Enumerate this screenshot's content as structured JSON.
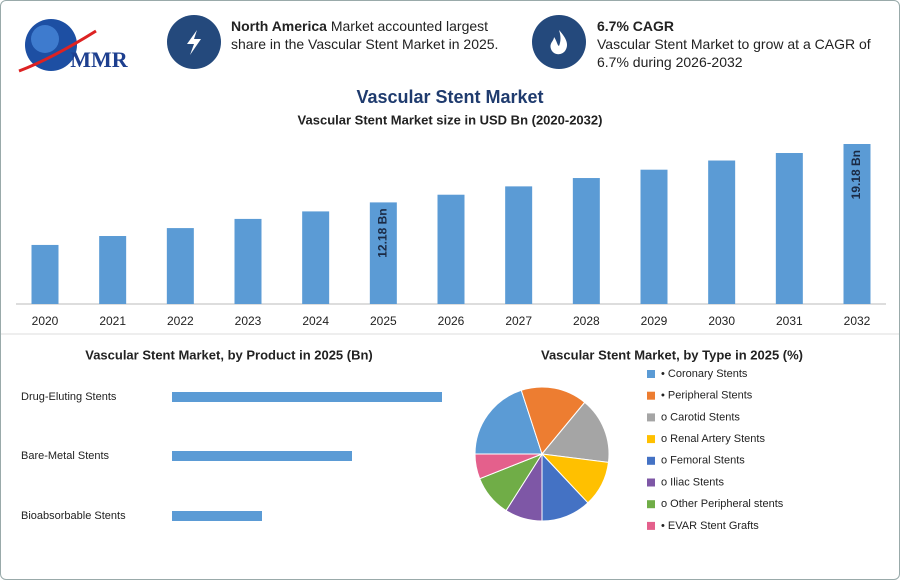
{
  "header": {
    "logo": "MMR",
    "highlights": [
      {
        "title": "North America",
        "text": "Market accounted largest share in the Vascular Stent Market in 2025."
      },
      {
        "title": "6.7% CAGR",
        "text": "Vascular Stent Market to grow at a CAGR of 6.7% during 2026-2032"
      }
    ]
  },
  "chart_data": [
    {
      "type": "bar",
      "title": "Vascular Stent Market",
      "subtitle": "Vascular Stent Market size in USD Bn (2020-2032)",
      "categories": [
        "2020",
        "2021",
        "2022",
        "2023",
        "2024",
        "2025",
        "2026",
        "2027",
        "2028",
        "2029",
        "2030",
        "2031",
        "2032"
      ],
      "values": [
        7.08,
        8.15,
        9.1,
        10.2,
        11.1,
        12.18,
        13.1,
        14.1,
        15.1,
        16.1,
        17.2,
        18.1,
        19.18
      ],
      "value_labels": [
        null,
        null,
        null,
        null,
        null,
        "12.18 Bn",
        null,
        null,
        null,
        null,
        null,
        null,
        "19.18 Bn"
      ],
      "color": "#5b9bd5"
    },
    {
      "type": "bar",
      "orientation": "horizontal",
      "title": "Vascular Stent Market, by Product in 2025 (Bn)",
      "categories": [
        "Drug-Eluting Stents",
        "Bare-Metal Stents",
        "Bioabsorbable Stents"
      ],
      "values": [
        6.09,
        4.06,
        2.03
      ],
      "color": "#5b9bd5"
    },
    {
      "type": "pie",
      "title": "Vascular Stent Market, by Type in 2025 (%)",
      "categories": [
        "• Coronary Stents",
        "• Peripheral Stents",
        "o Carotid Stents",
        "o Renal Artery Stents",
        "o Femoral Stents",
        "o Iliac Stents",
        "o Other Peripheral stents",
        "• EVAR Stent Grafts"
      ],
      "values": [
        20,
        16,
        16,
        11,
        12,
        9,
        10,
        6
      ],
      "colors": [
        "#5b9bd5",
        "#ed7d31",
        "#a5a5a5",
        "#ffc000",
        "#4472c4",
        "#7e57a6",
        "#70ad47",
        "#e4608c"
      ]
    }
  ]
}
